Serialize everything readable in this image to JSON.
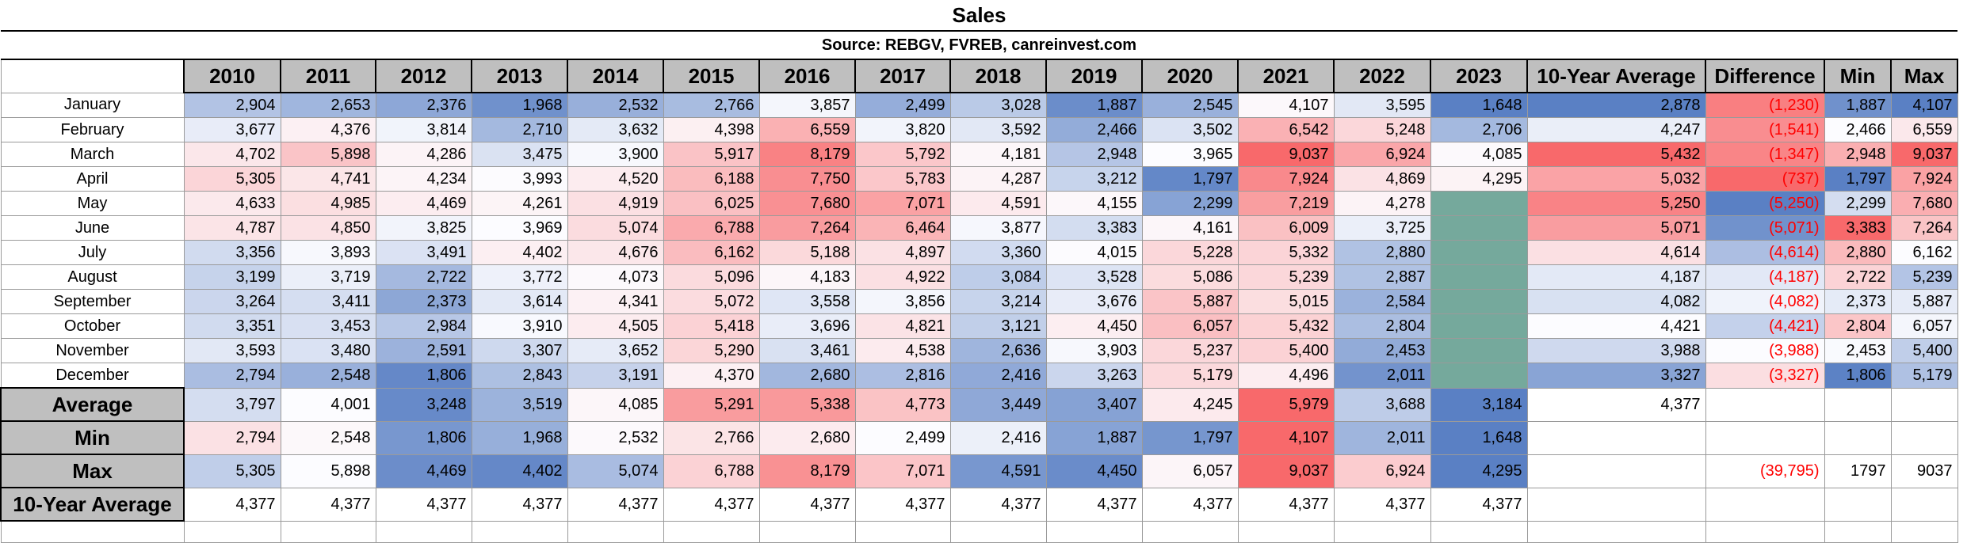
{
  "title": "Sales",
  "source": "Source: REBGV, FVREB, canreinvest.com",
  "columns": [
    "2010",
    "2011",
    "2012",
    "2013",
    "2014",
    "2015",
    "2016",
    "2017",
    "2018",
    "2019",
    "2020",
    "2021",
    "2022",
    "2023",
    "10-Year Average",
    "Difference",
    "Min",
    "Max"
  ],
  "rows": [
    {
      "month": "January",
      "values": [
        "2,904",
        "2,653",
        "2,376",
        "1,968",
        "2,532",
        "2,766",
        "3,857",
        "2,499",
        "3,028",
        "1,887",
        "2,545",
        "4,107",
        "3,595",
        "1,648"
      ],
      "avg": "2,878",
      "diff": "(1,230)",
      "min": "1,887",
      "max": "4,107"
    },
    {
      "month": "February",
      "values": [
        "3,677",
        "4,376",
        "3,814",
        "2,710",
        "3,632",
        "4,398",
        "6,559",
        "3,820",
        "3,592",
        "2,466",
        "3,502",
        "6,542",
        "5,248",
        "2,706"
      ],
      "avg": "4,247",
      "diff": "(1,541)",
      "min": "2,466",
      "max": "6,559"
    },
    {
      "month": "March",
      "values": [
        "4,702",
        "5,898",
        "4,286",
        "3,475",
        "3,900",
        "5,917",
        "8,179",
        "5,792",
        "4,181",
        "2,948",
        "3,965",
        "9,037",
        "6,924",
        "4,085"
      ],
      "avg": "5,432",
      "diff": "(1,347)",
      "min": "2,948",
      "max": "9,037"
    },
    {
      "month": "April",
      "values": [
        "5,305",
        "4,741",
        "4,234",
        "3,993",
        "4,520",
        "6,188",
        "7,750",
        "5,783",
        "4,287",
        "3,212",
        "1,797",
        "7,924",
        "4,869",
        "4,295"
      ],
      "avg": "5,032",
      "diff": "(737)",
      "min": "1,797",
      "max": "7,924"
    },
    {
      "month": "May",
      "values": [
        "4,633",
        "4,985",
        "4,469",
        "4,261",
        "4,919",
        "6,025",
        "7,680",
        "7,071",
        "4,591",
        "4,155",
        "2,299",
        "7,219",
        "4,278",
        ""
      ],
      "avg": "5,250",
      "diff": "(5,250)",
      "min": "2,299",
      "max": "7,680"
    },
    {
      "month": "June",
      "values": [
        "4,787",
        "4,850",
        "3,825",
        "3,969",
        "5,074",
        "6,788",
        "7,264",
        "6,464",
        "3,877",
        "3,383",
        "4,161",
        "6,009",
        "3,725",
        ""
      ],
      "avg": "5,071",
      "diff": "(5,071)",
      "min": "3,383",
      "max": "7,264"
    },
    {
      "month": "July",
      "values": [
        "3,356",
        "3,893",
        "3,491",
        "4,402",
        "4,676",
        "6,162",
        "5,188",
        "4,897",
        "3,360",
        "4,015",
        "5,228",
        "5,332",
        "2,880",
        ""
      ],
      "avg": "4,614",
      "diff": "(4,614)",
      "min": "2,880",
      "max": "6,162"
    },
    {
      "month": "August",
      "values": [
        "3,199",
        "3,719",
        "2,722",
        "3,772",
        "4,073",
        "5,096",
        "4,183",
        "4,922",
        "3,084",
        "3,528",
        "5,086",
        "5,239",
        "2,887",
        ""
      ],
      "avg": "4,187",
      "diff": "(4,187)",
      "min": "2,722",
      "max": "5,239"
    },
    {
      "month": "September",
      "values": [
        "3,264",
        "3,411",
        "2,373",
        "3,614",
        "4,341",
        "5,072",
        "3,558",
        "3,856",
        "3,214",
        "3,676",
        "5,887",
        "5,015",
        "2,584",
        ""
      ],
      "avg": "4,082",
      "diff": "(4,082)",
      "min": "2,373",
      "max": "5,887"
    },
    {
      "month": "October",
      "values": [
        "3,351",
        "3,453",
        "2,984",
        "3,910",
        "4,505",
        "5,418",
        "3,696",
        "4,821",
        "3,121",
        "4,450",
        "6,057",
        "5,432",
        "2,804",
        ""
      ],
      "avg": "4,421",
      "diff": "(4,421)",
      "min": "2,804",
      "max": "6,057"
    },
    {
      "month": "November",
      "values": [
        "3,593",
        "3,480",
        "2,591",
        "3,307",
        "3,652",
        "5,290",
        "3,461",
        "4,538",
        "2,636",
        "3,903",
        "5,237",
        "5,400",
        "2,453",
        ""
      ],
      "avg": "3,988",
      "diff": "(3,988)",
      "min": "2,453",
      "max": "5,400"
    },
    {
      "month": "December",
      "values": [
        "2,794",
        "2,548",
        "1,806",
        "2,843",
        "3,191",
        "4,370",
        "2,680",
        "2,816",
        "2,416",
        "3,263",
        "5,179",
        "4,496",
        "2,011",
        ""
      ],
      "avg": "3,327",
      "diff": "(3,327)",
      "min": "1,806",
      "max": "5,179"
    }
  ],
  "summary": [
    {
      "label": "Average",
      "values": [
        "3,797",
        "4,001",
        "3,248",
        "3,519",
        "4,085",
        "5,291",
        "5,338",
        "4,773",
        "3,449",
        "3,407",
        "4,245",
        "5,979",
        "3,688",
        "3,184"
      ],
      "avg": "4,377",
      "diff": "",
      "min": "",
      "max": ""
    },
    {
      "label": "Min",
      "values": [
        "2,794",
        "2,548",
        "1,806",
        "1,968",
        "2,532",
        "2,766",
        "2,680",
        "2,499",
        "2,416",
        "1,887",
        "1,797",
        "4,107",
        "2,011",
        "1,648"
      ],
      "avg": "",
      "diff": "",
      "min": "",
      "max": ""
    },
    {
      "label": "Max",
      "values": [
        "5,305",
        "5,898",
        "4,469",
        "4,402",
        "5,074",
        "6,788",
        "8,179",
        "7,071",
        "4,591",
        "4,450",
        "6,057",
        "9,037",
        "6,924",
        "4,295"
      ],
      "avg": "",
      "diff": "(39,795)",
      "min": "1797",
      "max": "9037"
    },
    {
      "label": "10-Year Average",
      "values": [
        "4,377",
        "4,377",
        "4,377",
        "4,377",
        "4,377",
        "4,377",
        "4,377",
        "4,377",
        "4,377",
        "4,377",
        "4,377",
        "4,377",
        "4,377",
        "4,377"
      ],
      "avg": "",
      "diff": "",
      "min": "",
      "max": ""
    }
  ],
  "colors": {
    "blue": "#5a80c4",
    "mid": "#fcfcff",
    "red": "#f8696b",
    "empty_fill": "#75a99c",
    "negative_text": "#ff0000",
    "header_fill": "#bfbfbf"
  }
}
